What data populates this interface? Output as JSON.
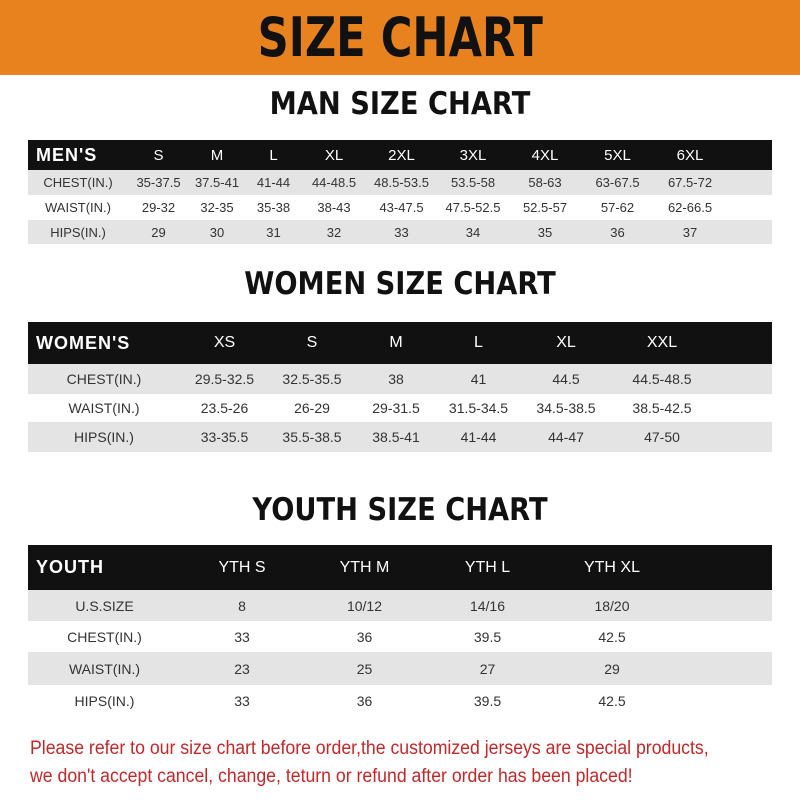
{
  "banner": {
    "title": "SIZE CHART",
    "color": "#e8821e"
  },
  "tables": [
    {
      "id": "men",
      "title": "MAN SIZE CHART",
      "header_label": "MEN'S",
      "columns": [
        "S",
        "M",
        "L",
        "XL",
        "2XL",
        "3XL",
        "4XL",
        "5XL",
        "6XL"
      ],
      "rows": [
        {
          "label": "CHEST(IN.)",
          "values": [
            "35-37.5",
            "37.5-41",
            "41-44",
            "44-48.5",
            "48.5-53.5",
            "53.5-58",
            "58-63",
            "63-67.5",
            "67.5-72"
          ]
        },
        {
          "label": "WAIST(IN.)",
          "values": [
            "29-32",
            "32-35",
            "35-38",
            "38-43",
            "43-47.5",
            "47.5-52.5",
            "52.5-57",
            "57-62",
            "62-66.5"
          ]
        },
        {
          "label": "HIPS(IN.)",
          "values": [
            "29",
            "30",
            "31",
            "32",
            "33",
            "34",
            "35",
            "36",
            "37"
          ]
        }
      ]
    },
    {
      "id": "women",
      "title": "WOMEN SIZE CHART",
      "header_label": "WOMEN'S",
      "columns": [
        "XS",
        "S",
        "M",
        "L",
        "XL",
        "XXL"
      ],
      "rows": [
        {
          "label": "CHEST(IN.)",
          "values": [
            "29.5-32.5",
            "32.5-35.5",
            "38",
            "41",
            "44.5",
            "44.5-48.5"
          ]
        },
        {
          "label": "WAIST(IN.)",
          "values": [
            "23.5-26",
            "26-29",
            "29-31.5",
            "31.5-34.5",
            "34.5-38.5",
            "38.5-42.5"
          ]
        },
        {
          "label": "HIPS(IN.)",
          "values": [
            "33-35.5",
            "35.5-38.5",
            "38.5-41",
            "41-44",
            "44-47",
            "47-50"
          ]
        }
      ]
    },
    {
      "id": "youth",
      "title": "YOUTH SIZE CHART",
      "header_label": "YOUTH",
      "columns": [
        "YTH S",
        "YTH M",
        "YTH L",
        "YTH XL"
      ],
      "rows": [
        {
          "label": "U.S.SIZE",
          "values": [
            "8",
            "10/12",
            "14/16",
            "18/20"
          ]
        },
        {
          "label": "CHEST(IN.)",
          "values": [
            "33",
            "36",
            "39.5",
            "42.5"
          ]
        },
        {
          "label": "WAIST(IN.)",
          "values": [
            "23",
            "25",
            "27",
            "29"
          ]
        },
        {
          "label": "HIPS(IN.)",
          "values": [
            "33",
            "36",
            "39.5",
            "42.5"
          ]
        }
      ]
    }
  ],
  "notice": {
    "line1": "Please refer to our size chart before order,the customized jerseys are special products,",
    "line2": "we don't accept cancel, change, teturn or refund after order has been placed!",
    "color": "#c0282a"
  }
}
